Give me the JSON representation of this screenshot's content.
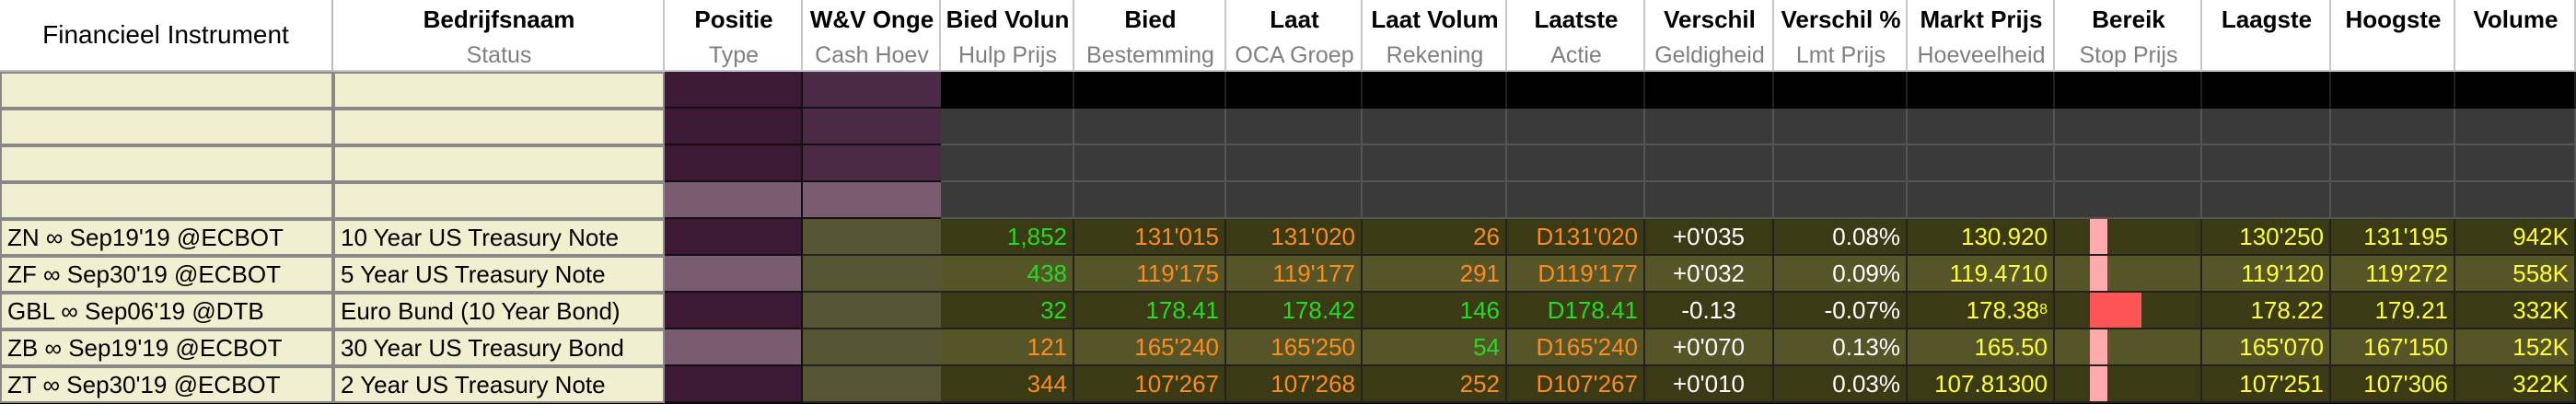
{
  "columns": [
    {
      "key": "instrument",
      "h1": "Financieel Instrument",
      "h2": ""
    },
    {
      "key": "company",
      "h1": "Bedrijfsnaam",
      "h2": "Status"
    },
    {
      "key": "position",
      "h1": "Positie",
      "h2": "Type"
    },
    {
      "key": "pnl",
      "h1": "W&V Onge",
      "h2": "Cash Hoev"
    },
    {
      "key": "bidsize",
      "h1": "Bied Volun",
      "h2": "Hulp Prijs"
    },
    {
      "key": "bid",
      "h1": "Bied",
      "h2": "Bestemming"
    },
    {
      "key": "ask",
      "h1": "Laat",
      "h2": "OCA Groep"
    },
    {
      "key": "asksize",
      "h1": "Laat Volum",
      "h2": "Rekening"
    },
    {
      "key": "last",
      "h1": "Laatste",
      "h2": "Actie"
    },
    {
      "key": "change",
      "h1": "Verschil",
      "h2": "Geldigheid"
    },
    {
      "key": "changepct",
      "h1": "Verschil %",
      "h2": "Lmt Prijs"
    },
    {
      "key": "mark",
      "h1": "Markt Prijs",
      "h2": "Hoeveelheid"
    },
    {
      "key": "range",
      "h1": "Bereik",
      "h2": "Stop Prijs"
    },
    {
      "key": "low",
      "h1": "Laagste",
      "h2": ""
    },
    {
      "key": "high",
      "h1": "Hoogste",
      "h2": ""
    },
    {
      "key": "volume",
      "h1": "Volume",
      "h2": ""
    }
  ],
  "rows": [
    {
      "instrument": "ZN ∞ Sep19'19 @ECBOT",
      "company": "10 Year US Treasury Note",
      "bidsize": "1,852",
      "bid": "131'015",
      "ask": "131'020",
      "asksize": "26",
      "last": "D131'020",
      "change": "+0'035",
      "changepct": "0.08%",
      "mark": "130.920",
      "mark_sup": "",
      "low": "130'250",
      "high": "131'195",
      "volume": "942K"
    },
    {
      "instrument": "ZF ∞ Sep30'19 @ECBOT",
      "company": "5 Year US Treasury Note",
      "bidsize": "438",
      "bid": "119'175",
      "ask": "119'177",
      "asksize": "291",
      "last": "D119'177",
      "change": "+0'032",
      "changepct": "0.09%",
      "mark": "119.4710",
      "mark_sup": "",
      "low": "119'120",
      "high": "119'272",
      "volume": "558K"
    },
    {
      "instrument": "GBL ∞ Sep06'19 @DTB",
      "company": "Euro Bund (10 Year Bond)",
      "bidsize": "32",
      "bid": "178.41",
      "ask": "178.42",
      "asksize": "146",
      "last": "D178.41",
      "change": "-0.13",
      "changepct": "-0.07%",
      "mark": "178.38",
      "mark_sup": "8",
      "low": "178.22",
      "high": "179.21",
      "volume": "332K"
    },
    {
      "instrument": "ZB ∞ Sep19'19 @ECBOT",
      "company": "30 Year US Treasury Bond",
      "bidsize": "121",
      "bid": "165'240",
      "ask": "165'250",
      "asksize": "54",
      "last": "D165'240",
      "change": "+0'070",
      "changepct": "0.13%",
      "mark": "165.50",
      "mark_sup": "",
      "low": "165'070",
      "high": "167'150",
      "volume": "152K"
    },
    {
      "instrument": "ZT ∞ Sep30'19 @ECBOT",
      "company": "2 Year US Treasury Note",
      "bidsize": "344",
      "bid": "107'267",
      "ask": "107'268",
      "asksize": "252",
      "last": "D107'267",
      "change": "+0'010",
      "changepct": "0.03%",
      "mark": "107.81300",
      "mark_sup": "",
      "low": "107'251",
      "high": "107'306",
      "volume": "322K"
    }
  ],
  "row_colors": {
    "bidsize": [
      "#22dd22",
      "#22dd22",
      "#22dd22",
      "#ff8c1a",
      "#ff8c1a"
    ],
    "bid": [
      "#ff8c1a",
      "#ff8c1a",
      "#22dd22",
      "#ff8c1a",
      "#ff8c1a"
    ],
    "ask": [
      "#ff8c1a",
      "#ff8c1a",
      "#22dd22",
      "#ff8c1a",
      "#ff8c1a"
    ],
    "asksize": [
      "#ff8c1a",
      "#ff8c1a",
      "#22dd22",
      "#22dd22",
      "#ff8c1a"
    ],
    "last": [
      "#ff8c1a",
      "#ff8c1a",
      "#22dd22",
      "#ff8c1a",
      "#ff8c1a"
    ],
    "row_bg": [
      "#3a3a14",
      "#555528",
      "#3a3a14",
      "#555528",
      "#3a3a14"
    ]
  },
  "range_levels": [
    0.12,
    0.12,
    0.35,
    0.12,
    0.12
  ],
  "colors": {
    "header_bg": "#ffffff",
    "label_col_bg": "#f0f0d0",
    "position_bg_dark": "#3d1a33",
    "position_bg_light": "#7a5c70",
    "pnl_bg": "#6a5064",
    "text_white": "#ffffff",
    "text_yellow": "#ffff33",
    "range_light": "#ffaaaa",
    "range_strong": "#ff5555"
  }
}
